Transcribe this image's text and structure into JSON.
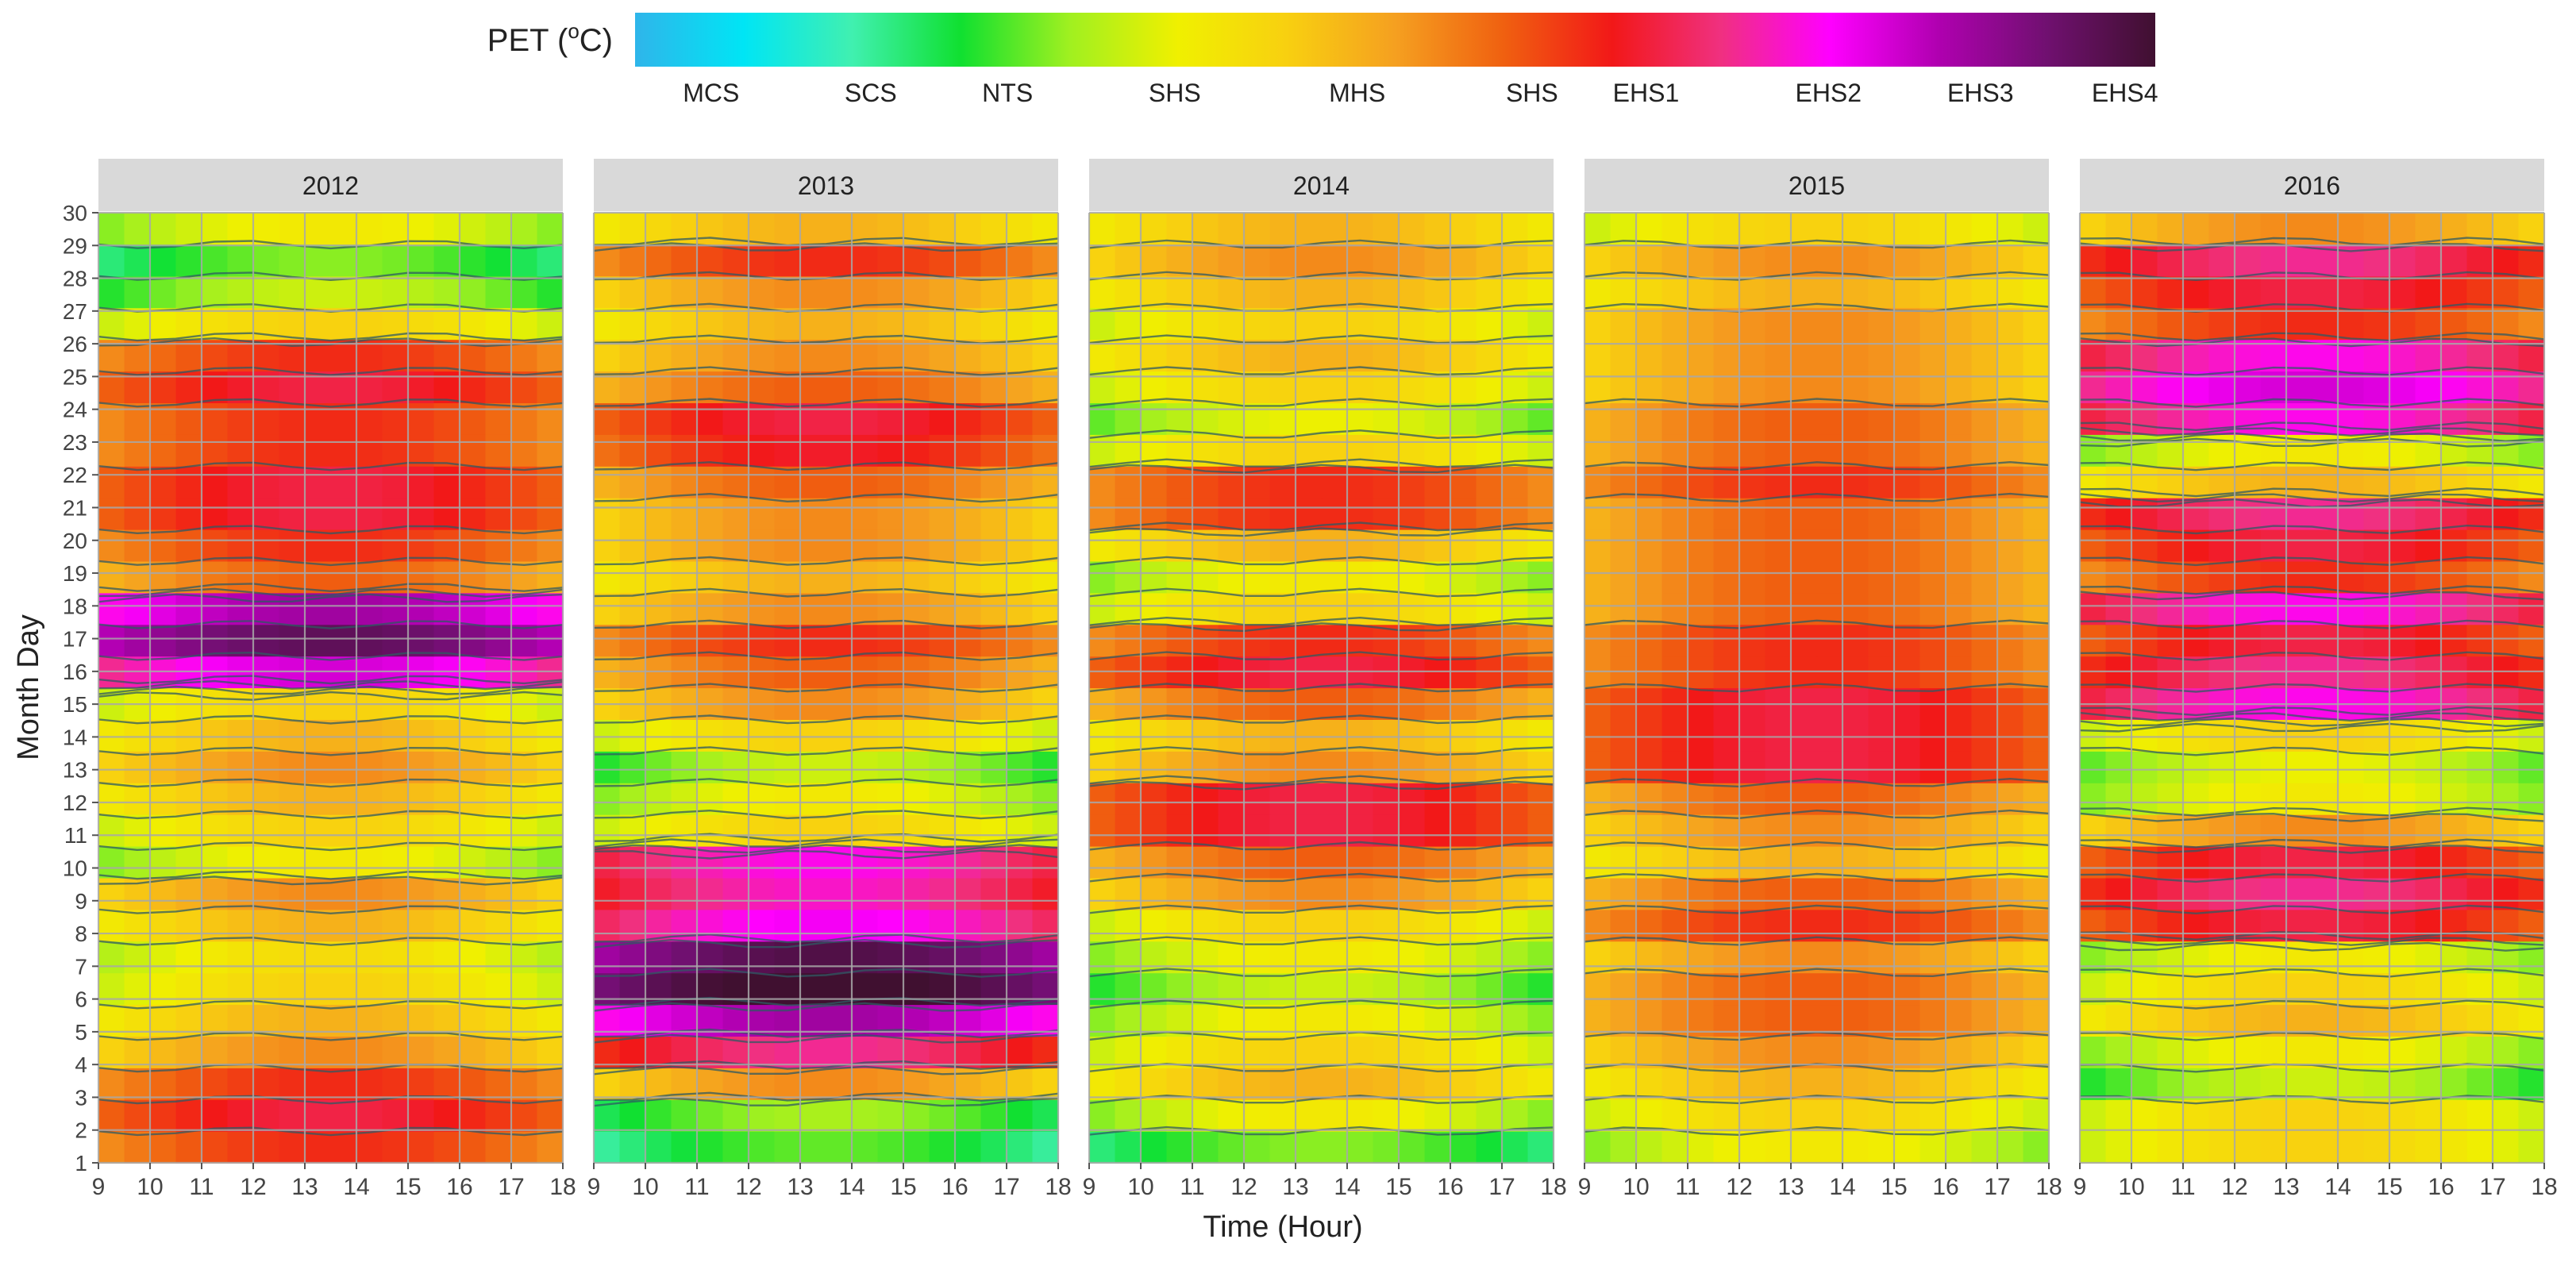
{
  "chart_data": {
    "type": "heatmap",
    "title": "",
    "xlabel": "Time (Hour)",
    "ylabel": "Month Day",
    "x_ticks": [
      "9",
      "10",
      "11",
      "12",
      "13",
      "14",
      "15",
      "16",
      "17",
      "18"
    ],
    "y_ticks": [
      "1",
      "2",
      "3",
      "4",
      "5",
      "6",
      "7",
      "8",
      "9",
      "10",
      "11",
      "12",
      "13",
      "14",
      "15",
      "16",
      "17",
      "18",
      "19",
      "20",
      "21",
      "22",
      "23",
      "24",
      "25",
      "26",
      "27",
      "28",
      "29",
      "30"
    ],
    "xlim": [
      9,
      18
    ],
    "ylim": [
      1,
      30
    ],
    "legend": {
      "title": "PET (",
      "title_sup": "o",
      "title_end": "C)",
      "colors": [
        "#2fb5ea",
        "#00e5f5",
        "#40f0b0",
        "#10e030",
        "#a0f020",
        "#f0f000",
        "#f8d010",
        "#f5a020",
        "#f06010",
        "#f21818",
        "#f03080",
        "#ff00ff",
        "#b000b0",
        "#701070",
        "#401030"
      ],
      "labels": [
        "MCS",
        "SCS",
        "NTS",
        "SHS",
        "MHS",
        "SHS",
        "EHS1",
        "EHS2",
        "EHS3",
        "EHS4"
      ],
      "label_positions": [
        0.05,
        0.155,
        0.245,
        0.355,
        0.475,
        0.59,
        0.665,
        0.785,
        0.885,
        0.98
      ]
    },
    "panels": [
      {
        "year": "2012",
        "day_levels": [
          5.5,
          6.0,
          5.5,
          4.5,
          4.0,
          3.5,
          3.3,
          4.0,
          4.5,
          3.0,
          3.5,
          4.0,
          4.5,
          4.0,
          3.5,
          7.5,
          8.8,
          8.0,
          5.0,
          5.5,
          6.0,
          6.0,
          5.5,
          5.5,
          6.0,
          5.5,
          3.5,
          2.5,
          2.0,
          3.0
        ]
      },
      {
        "year": "2013",
        "day_levels": [
          1.8,
          2.2,
          4.5,
          6.5,
          8.0,
          9.5,
          9.0,
          7.2,
          6.8,
          7.0,
          3.5,
          3.0,
          2.5,
          3.5,
          4.5,
          5.0,
          5.5,
          4.5,
          4.0,
          4.5,
          4.5,
          5.0,
          5.8,
          6.0,
          5.0,
          4.5,
          4.0,
          4.5,
          5.5,
          4.0
        ]
      },
      {
        "year": "2014",
        "day_levels": [
          2.0,
          3.0,
          4.0,
          3.5,
          3.0,
          2.5,
          3.0,
          3.5,
          4.5,
          5.0,
          6.0,
          6.0,
          4.5,
          4.0,
          5.0,
          6.0,
          5.5,
          3.5,
          3.0,
          4.0,
          5.5,
          5.5,
          3.5,
          2.8,
          3.5,
          4.0,
          3.5,
          4.0,
          4.5,
          4.0
        ]
      },
      {
        "year": "2015",
        "day_levels": [
          3.0,
          3.5,
          4.0,
          4.5,
          5.0,
          5.0,
          4.5,
          5.5,
          5.0,
          4.0,
          4.5,
          5.0,
          6.0,
          6.0,
          6.0,
          5.5,
          5.5,
          5.0,
          5.0,
          5.0,
          5.0,
          5.5,
          5.0,
          5.0,
          4.5,
          4.5,
          4.5,
          4.0,
          4.5,
          3.5
        ]
      },
      {
        "year": "2016",
        "day_levels": [
          3.5,
          3.5,
          2.5,
          3.0,
          4.0,
          3.5,
          3.0,
          6.0,
          6.5,
          6.0,
          4.5,
          3.0,
          2.8,
          3.5,
          7.0,
          6.5,
          6.0,
          7.0,
          5.5,
          6.0,
          6.5,
          4.0,
          3.0,
          7.0,
          7.5,
          7.0,
          5.5,
          6.0,
          6.5,
          4.5
        ]
      }
    ]
  }
}
